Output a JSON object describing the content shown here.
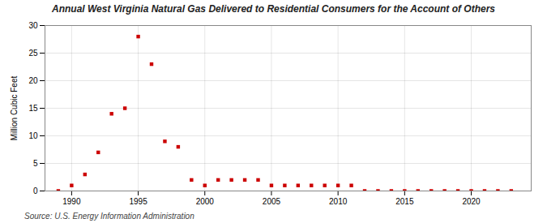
{
  "chart_data": {
    "type": "scatter",
    "title": "Annual West Virginia Natural Gas Delivered to Residential Consumers for the Account of Others",
    "ylabel": "Million Cubic Feet",
    "source": "Source: U.S. Energy Information Administration",
    "x": [
      1989,
      1990,
      1991,
      1992,
      1993,
      1994,
      1995,
      1996,
      1997,
      1998,
      1999,
      2000,
      2001,
      2002,
      2003,
      2004,
      2005,
      2006,
      2007,
      2008,
      2009,
      2010,
      2011,
      2012,
      2013,
      2014,
      2015,
      2016,
      2017,
      2018,
      2019,
      2020,
      2021,
      2022,
      2023
    ],
    "values": [
      0.0,
      1.0,
      3.0,
      7.0,
      14.0,
      15.0,
      28.0,
      23.0,
      9.0,
      8.0,
      2.0,
      1.0,
      2.0,
      2.0,
      2.0,
      2.0,
      1.0,
      1.0,
      1.0,
      1.0,
      1.0,
      1.0,
      1.0,
      0.0,
      0.0,
      0.0,
      0.0,
      0.0,
      0.0,
      0.0,
      0.0,
      0.0,
      0.0,
      0.0,
      0.0
    ],
    "color": "#cc0000",
    "marker": "square",
    "xlim": [
      1988,
      2024.5
    ],
    "ylim": [
      0,
      30
    ],
    "xticks": [
      1990,
      1995,
      2000,
      2005,
      2010,
      2015,
      2020
    ],
    "yticks": [
      0,
      5,
      10,
      15,
      20,
      25,
      30
    ],
    "grid": true
  }
}
